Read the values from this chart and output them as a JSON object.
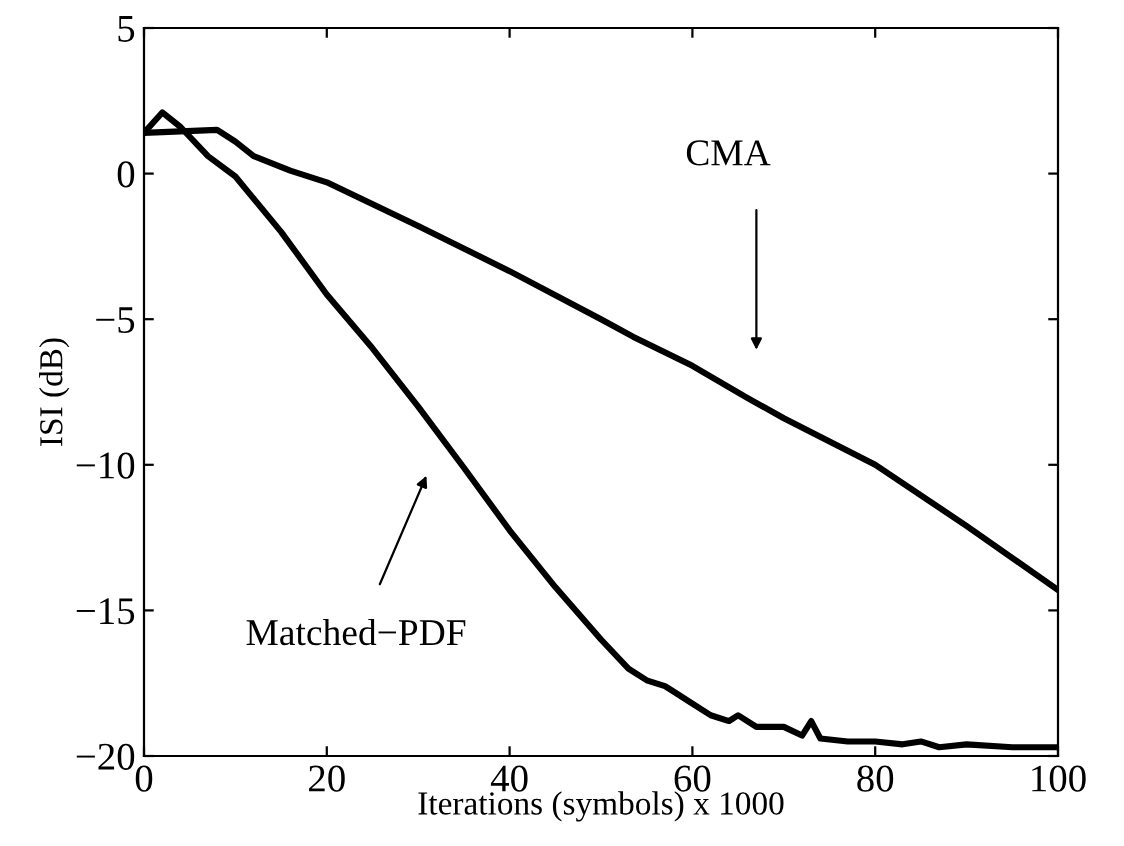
{
  "chart_data": {
    "type": "line",
    "xlabel": "Iterations (symbols) x 1000",
    "ylabel": "ISI (dB)",
    "xlim": [
      0,
      100
    ],
    "ylim": [
      -20,
      5
    ],
    "xticks": [
      0,
      20,
      40,
      60,
      80,
      100
    ],
    "yticks": [
      {
        "value": -20,
        "label": "−20"
      },
      {
        "value": -15,
        "label": "−15"
      },
      {
        "value": -10,
        "label": "−10"
      },
      {
        "value": -5,
        "label": "−5"
      },
      0,
      5
    ],
    "grid": false,
    "legend": false,
    "marker": "none",
    "line_style": "solid",
    "series": [
      {
        "color": "#000000",
        "x": [
          0,
          4,
          8,
          10,
          12,
          16,
          20,
          30,
          40,
          50,
          53.5,
          60,
          66,
          70,
          80,
          90,
          100
        ],
        "values": [
          1.4,
          1.45,
          1.5,
          1.1,
          0.6,
          0.1,
          -0.3,
          -1.8,
          -3.35,
          -5.0,
          -5.6,
          -6.6,
          -7.7,
          -8.4,
          -10.0,
          -12.1,
          -14.3
        ]
      },
      {
        "color": "#000000",
        "x": [
          0,
          2,
          4,
          7,
          10,
          15,
          20,
          25,
          30,
          35,
          40,
          45,
          50,
          53,
          55,
          57,
          58,
          60,
          62,
          64,
          65,
          67,
          70,
          72,
          73,
          74,
          77,
          80,
          83,
          85,
          87,
          90,
          95,
          100
        ],
        "values": [
          1.4,
          2.1,
          1.6,
          0.6,
          -0.1,
          -2.0,
          -4.15,
          -6.0,
          -8.0,
          -10.1,
          -12.25,
          -14.2,
          -16.0,
          -17.0,
          -17.4,
          -17.6,
          -17.8,
          -18.2,
          -18.6,
          -18.8,
          -18.6,
          -19.0,
          -19.0,
          -19.3,
          -18.8,
          -19.4,
          -19.5,
          -19.5,
          -19.6,
          -19.5,
          -19.7,
          -19.6,
          -19.7,
          -19.7
        ]
      }
    ],
    "annotations": [
      "CMA",
      "Matched−PDF"
    ]
  }
}
